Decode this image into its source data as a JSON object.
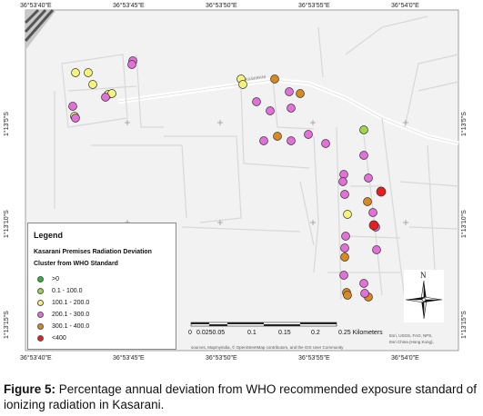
{
  "map": {
    "top_coords": [
      "36°53'40\"E",
      "36°53'45\"E",
      "36°53'50\"E",
      "36°53'55\"E",
      "36°54'0\"E"
    ],
    "bottom_coords": [
      "36°53'40\"E",
      "36°53'45\"E",
      "36°53'50\"E",
      "36°53'55\"E",
      "36°54'0\"E"
    ],
    "left_coords": [
      "1°13'5\"S",
      "1°13'10\"S",
      "1°13'15\"S"
    ],
    "right_coords": [
      "1°13'5\"S",
      "1°13'10\"S",
      "1°13'15\"S"
    ],
    "road_label": "KASARANI",
    "north_label": "N"
  },
  "legend": {
    "title": "Legend",
    "subtitle_line1": "Kasarani Premises Radiation Deviation",
    "subtitle_line2": "Cluster from WHO Standard",
    "classes": [
      {
        "label": ">0",
        "color": "#2db52d"
      },
      {
        "label": "0.1 - 100.0",
        "color": "#9fd64a"
      },
      {
        "label": "100.1 - 200.0",
        "color": "#f4f47a"
      },
      {
        "label": "200.1 - 300.0",
        "color": "#e36fd8"
      },
      {
        "label": "300.1 - 400.0",
        "color": "#d9891e"
      },
      {
        "label": "<400",
        "color": "#e81d1d"
      }
    ]
  },
  "scale": {
    "labels": [
      "0",
      "0.0250.05",
      "0.1",
      "0.15",
      "0.2",
      "0.25 Kilometers"
    ]
  },
  "attribution": {
    "line_left": "sources, Mapmyindia, © OpenStreetMap contributors, and the GIS User Community",
    "line_right1": "Esri, USGS, FAO, NPS,",
    "line_right2": "Esri China (Hong Kong),"
  },
  "caption": {
    "figure_label": "Figure 5:",
    "text": " Percentage annual deviation from WHO recommended exposure standard of ionizing radiation in Kasarani."
  },
  "points": [
    {
      "cls": 2
    },
    {
      "cls": 2
    },
    {
      "cls": 2
    },
    {
      "cls": 2
    },
    {
      "cls": 2
    },
    {
      "cls": 3
    },
    {
      "cls": 3
    },
    {
      "cls": 3
    },
    {
      "cls": 3
    },
    {
      "cls": 2
    },
    {
      "cls": 3
    },
    {
      "cls": 2
    },
    {
      "cls": 2
    },
    {
      "cls": 4
    },
    {
      "cls": 3
    },
    {
      "cls": 3
    },
    {
      "cls": 3
    },
    {
      "cls": 4
    },
    {
      "cls": 3
    },
    {
      "cls": 3
    },
    {
      "cls": 4
    },
    {
      "cls": 3
    },
    {
      "cls": 3
    },
    {
      "cls": 3
    },
    {
      "cls": 1
    },
    {
      "cls": 3
    },
    {
      "cls": 3
    },
    {
      "cls": 3
    },
    {
      "cls": 3
    },
    {
      "cls": 3
    },
    {
      "cls": 4
    },
    {
      "cls": 3
    },
    {
      "cls": 5
    },
    {
      "cls": 2
    },
    {
      "cls": 3
    },
    {
      "cls": 5
    },
    {
      "cls": 3
    },
    {
      "cls": 3
    },
    {
      "cls": 4
    },
    {
      "cls": 3
    },
    {
      "cls": 3
    },
    {
      "cls": 4
    },
    {
      "cls": 4
    },
    {
      "cls": 3
    },
    {
      "cls": 4
    },
    {
      "cls": 3
    }
  ]
}
